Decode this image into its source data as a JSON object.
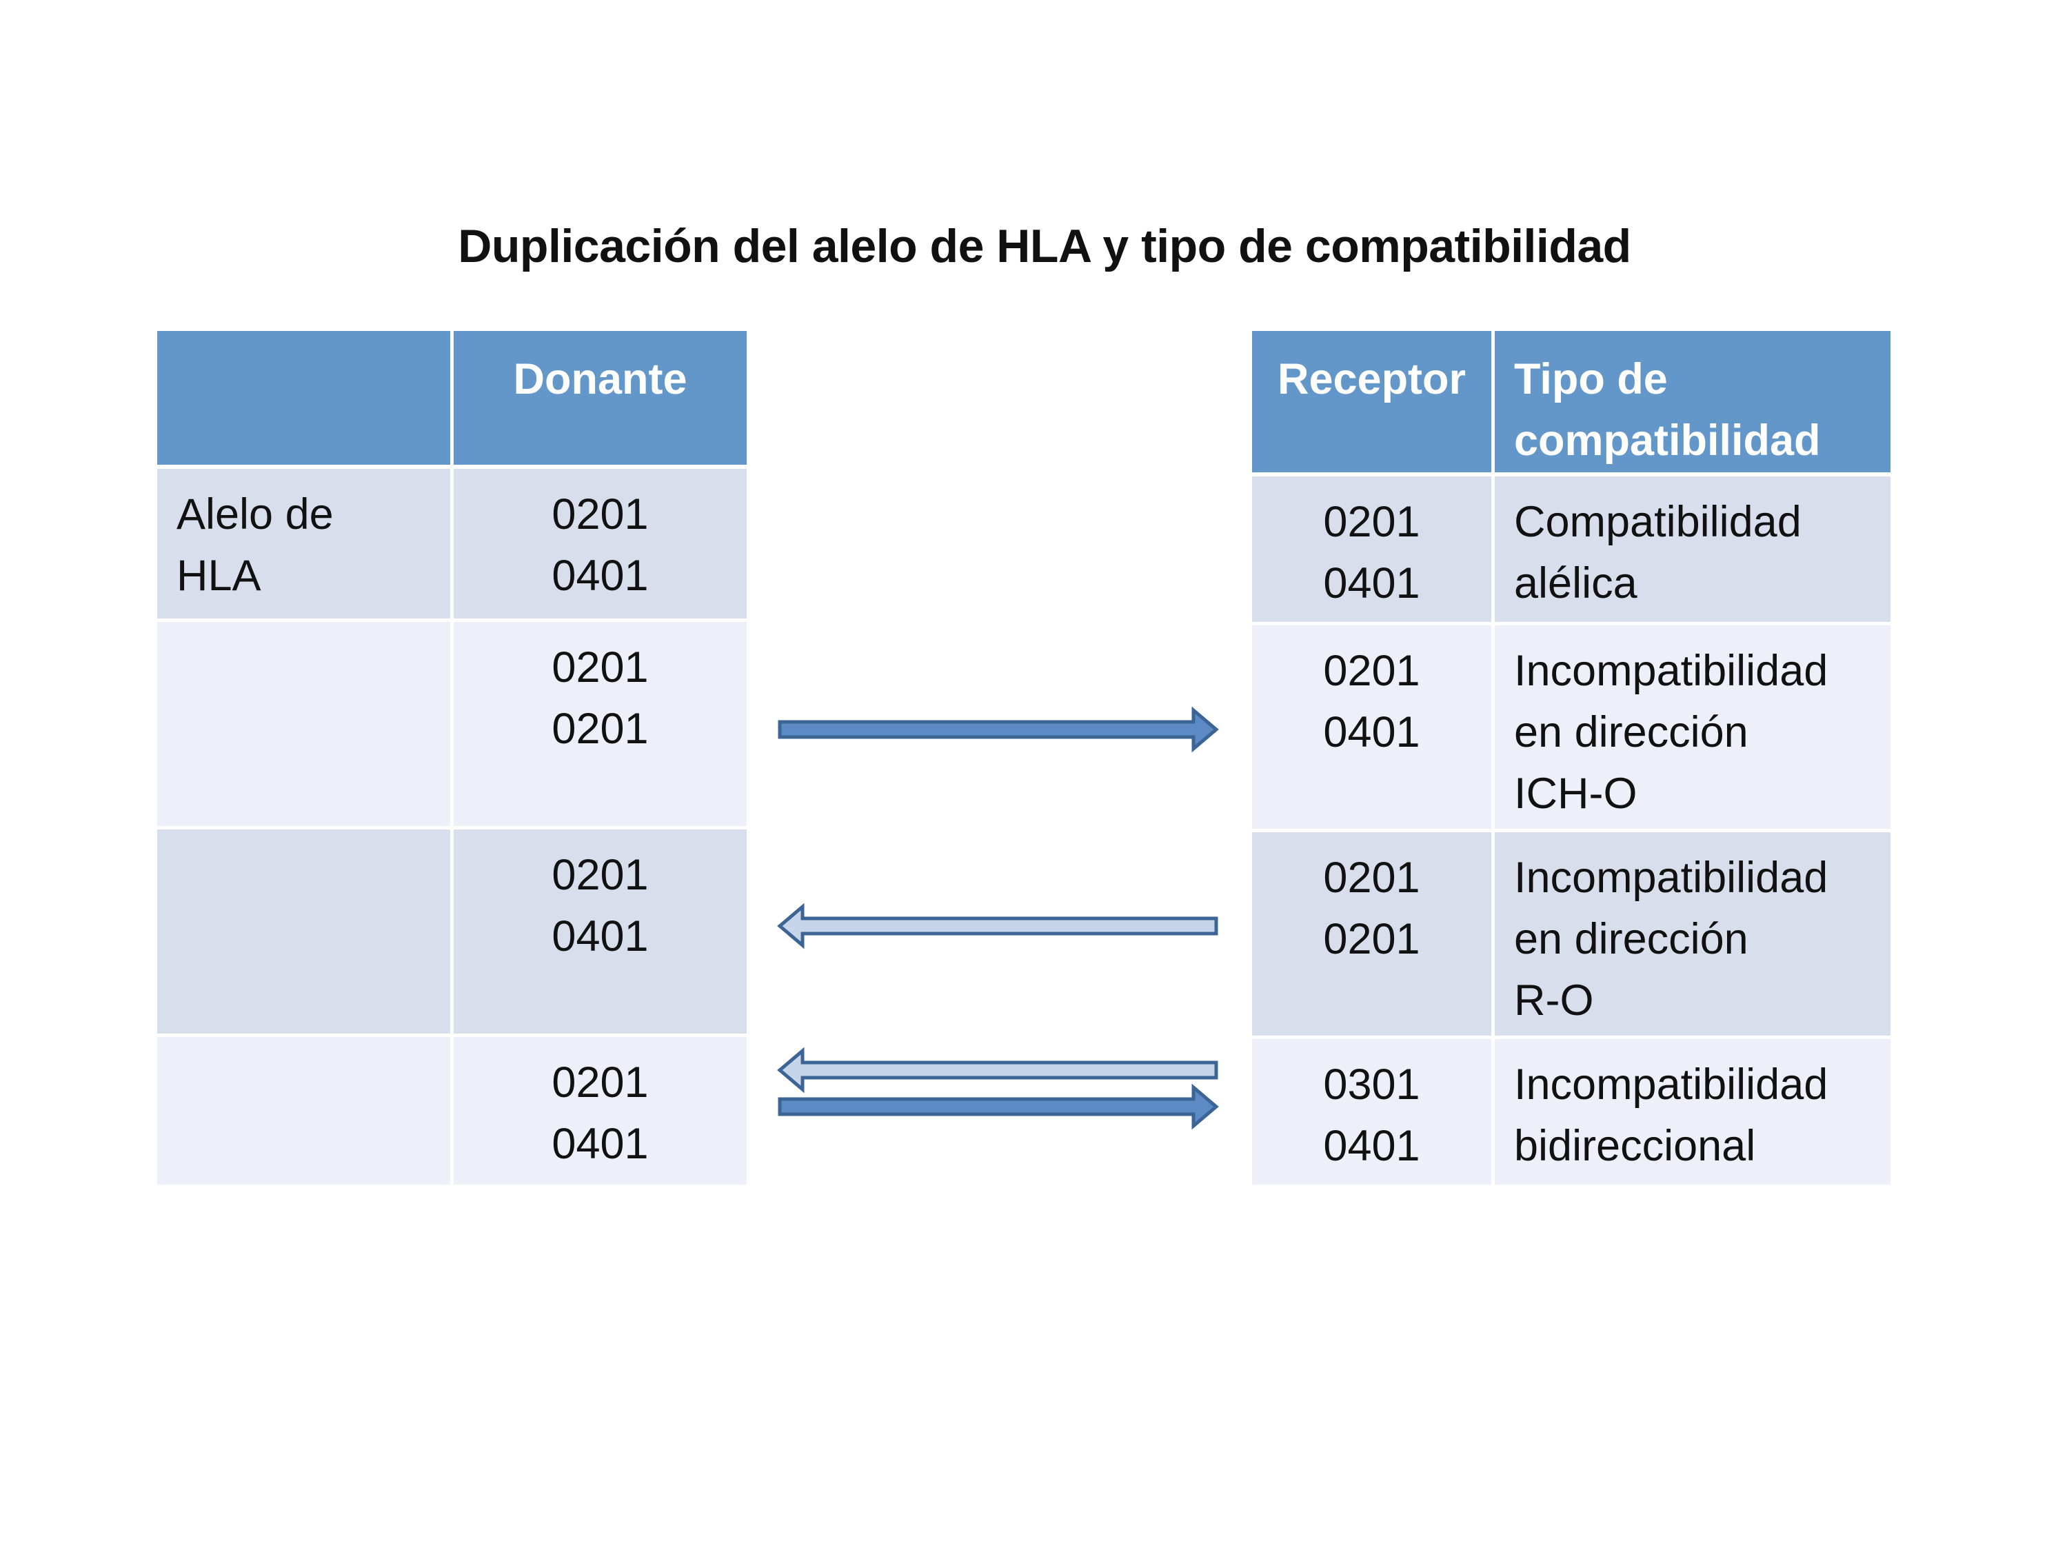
{
  "title": "Duplicación del alelo de HLA y tipo de compatibilidad",
  "donor_table": {
    "header": [
      "",
      "Donante"
    ],
    "rows": [
      {
        "label_lines": [
          "Alelo de",
          "HLA"
        ],
        "alleles": [
          "0201",
          "0401"
        ]
      },
      {
        "label_lines": [],
        "alleles": [
          "0201",
          "0201"
        ]
      },
      {
        "label_lines": [],
        "alleles": [
          "0201",
          "0401"
        ]
      },
      {
        "label_lines": [],
        "alleles": [
          "0201",
          "0401"
        ]
      }
    ]
  },
  "recipient_table": {
    "header": [
      "Receptor",
      "Tipo de compatibilidad"
    ],
    "header_lines": [
      "Tipo de",
      "compatibilidad"
    ],
    "rows": [
      {
        "alleles": [
          "0201",
          "0401"
        ],
        "type_lines": [
          "Compatibilidad",
          "alélica"
        ]
      },
      {
        "alleles": [
          "0201",
          "0401"
        ],
        "type_lines": [
          "Incompatibilidad",
          "en dirección",
          "ICH-O"
        ]
      },
      {
        "alleles": [
          "0201",
          "0201"
        ],
        "type_lines": [
          "Incompatibilidad",
          "en dirección",
          "R-O"
        ]
      },
      {
        "alleles": [
          "0301",
          "0401"
        ],
        "type_lines": [
          "Incompatibilidad",
          "bidireccional"
        ]
      }
    ]
  },
  "arrows": [
    {
      "row": 2,
      "direction": "right",
      "style": "dark"
    },
    {
      "row": 3,
      "direction": "left",
      "style": "light"
    },
    {
      "row": 4,
      "direction": "left",
      "style": "light"
    },
    {
      "row": 4,
      "direction": "right",
      "style": "dark"
    }
  ],
  "colors": {
    "header": "#6397c9",
    "row_dark": "#d9deec",
    "row_light": "#edf0f8",
    "arrow_dark_fill": "#5b8ac4",
    "arrow_light_fill": "#c7d5ea",
    "arrow_stroke": "#3c6596"
  }
}
